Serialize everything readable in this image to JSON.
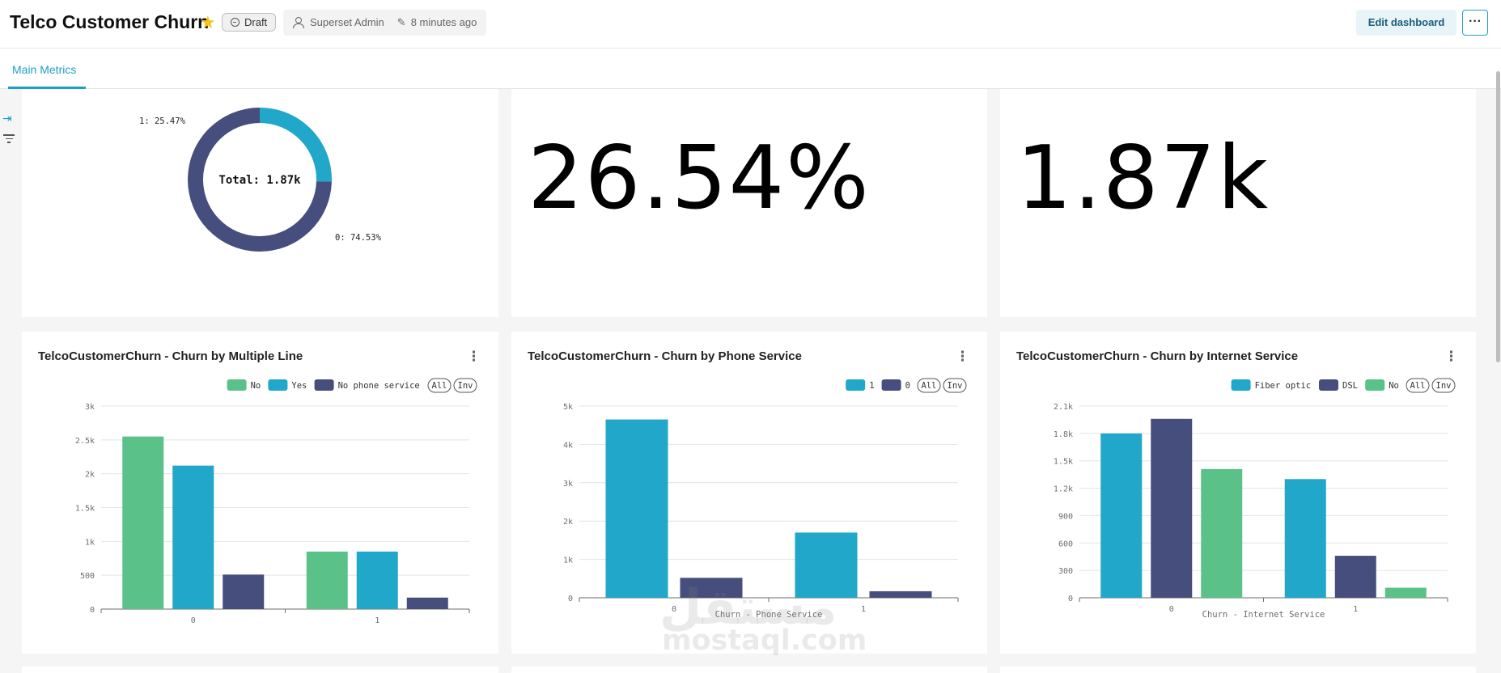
{
  "header": {
    "title": "Telco Customer Churn",
    "status": "Draft",
    "owner": "Superset Admin",
    "modified": "8 minutes ago",
    "edit_label": "Edit dashboard",
    "more_label": "···",
    "star_color": "#f5c518"
  },
  "tabs": [
    {
      "label": "Main Metrics",
      "active": true
    }
  ],
  "colors": {
    "accent": "#1f9fc6",
    "green": "#5ac189",
    "blue": "#20a7c9",
    "navy": "#454e7c"
  },
  "metrics": {
    "churn_rate": "26.54%",
    "churned_count": "1.87k"
  },
  "watermark": {
    "arabic": "مستقل",
    "latin": "mostaql.com"
  },
  "chart_data": [
    {
      "type": "pie",
      "donut": true,
      "center_label": "Total: 1.87k",
      "slices": [
        {
          "name": "1",
          "value": 25.47,
          "label": "1: 25.47%",
          "color": "#20a7c9"
        },
        {
          "name": "0",
          "value": 74.53,
          "label": "0: 74.53%",
          "color": "#454e7c"
        }
      ]
    },
    {
      "type": "bar",
      "title": "TelcoCustomerChurn - Churn by Multiple Line",
      "categories": [
        "0",
        "1"
      ],
      "series": [
        {
          "name": "No",
          "values": [
            2550,
            850
          ],
          "color": "#5ac189"
        },
        {
          "name": "Yes",
          "values": [
            2120,
            850
          ],
          "color": "#20a7c9"
        },
        {
          "name": "No phone service",
          "values": [
            510,
            170
          ],
          "color": "#454e7c"
        }
      ],
      "legend_controls": [
        "All",
        "Inv"
      ],
      "ylim": [
        0,
        3000
      ],
      "yticks": [
        0,
        500,
        1000,
        1500,
        2000,
        2500,
        3000
      ],
      "ytick_labels": [
        "0",
        "500",
        "1k",
        "1.5k",
        "2k",
        "2.5k",
        "3k"
      ],
      "xlabel": "",
      "legend": "top-right"
    },
    {
      "type": "bar",
      "title": "TelcoCustomerChurn - Churn by Phone Service",
      "categories": [
        "0",
        "1"
      ],
      "series": [
        {
          "name": "1",
          "values": [
            4650,
            1700
          ],
          "color": "#20a7c9"
        },
        {
          "name": "0",
          "values": [
            520,
            170
          ],
          "color": "#454e7c"
        }
      ],
      "legend_controls": [
        "All",
        "Inv"
      ],
      "ylim": [
        0,
        5000
      ],
      "yticks": [
        0,
        1000,
        2000,
        3000,
        4000,
        5000
      ],
      "ytick_labels": [
        "0",
        "1k",
        "2k",
        "3k",
        "4k",
        "5k"
      ],
      "xlabel": "Churn - Phone Service",
      "legend": "top-right"
    },
    {
      "type": "bar",
      "title": "TelcoCustomerChurn - Churn by Internet Service",
      "categories": [
        "0",
        "1"
      ],
      "series": [
        {
          "name": "Fiber optic",
          "values": [
            1800,
            1300
          ],
          "color": "#20a7c9"
        },
        {
          "name": "DSL",
          "values": [
            1960,
            460
          ],
          "color": "#454e7c"
        },
        {
          "name": "No",
          "values": [
            1410,
            110
          ],
          "color": "#5ac189"
        }
      ],
      "legend_controls": [
        "All",
        "Inv"
      ],
      "ylim": [
        0,
        2100
      ],
      "yticks": [
        0,
        300,
        600,
        900,
        1200,
        1500,
        1800,
        2100
      ],
      "ytick_labels": [
        "0",
        "300",
        "600",
        "900",
        "1.2k",
        "1.5k",
        "1.8k",
        "2.1k"
      ],
      "xlabel": "Churn - Internet Service",
      "legend": "top-right"
    }
  ]
}
